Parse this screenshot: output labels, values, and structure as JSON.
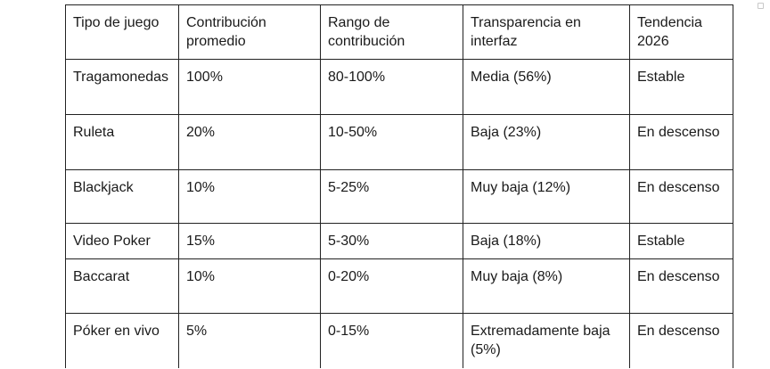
{
  "table": {
    "headers": [
      "Tipo de juego",
      "Contribución promedio",
      "Rango de contribución",
      "Transparencia en interfaz",
      "Tendencia 2026"
    ],
    "rows": [
      [
        "Tragamonedas",
        "100%",
        "80-100%",
        "Media (56%)",
        "Estable"
      ],
      [
        "Ruleta",
        "20%",
        "10-50%",
        "Baja (23%)",
        "En descenso"
      ],
      [
        "Blackjack",
        "10%",
        "5-25%",
        "Muy baja (12%)",
        "En descenso"
      ],
      [
        "Video Poker",
        "15%",
        "5-30%",
        "Baja (18%)",
        "Estable"
      ],
      [
        "Baccarat",
        "10%",
        "0-20%",
        "Muy baja (8%)",
        "En descenso"
      ],
      [
        "Póker en vivo",
        "5%",
        "0-15%",
        "Extremadamente baja (5%)",
        "En descenso"
      ]
    ]
  }
}
